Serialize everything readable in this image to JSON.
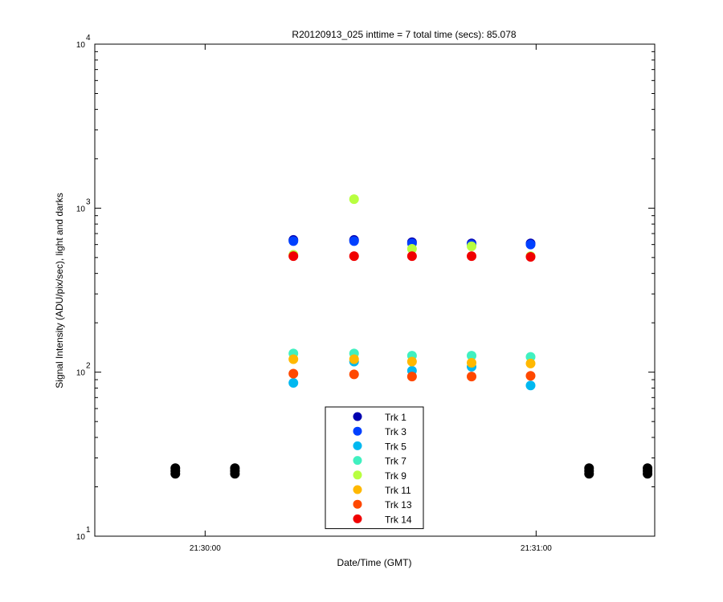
{
  "chart_data": {
    "type": "scatter",
    "title": "R20120913_025 inttime = 7 total time (secs): 85.078",
    "x_label": "Date/Time (GMT)",
    "y_label": "Signal Intensity (ADU/pix/sec), light and darks",
    "log_y": true,
    "xlim": [
      77380,
      77481.5
    ],
    "xticks": [
      {
        "value": 77400,
        "label": "21:30:00"
      },
      {
        "value": 77460,
        "label": "21:31:00"
      }
    ],
    "ylim": [
      10,
      10000
    ],
    "yticks": [
      {
        "value": 10,
        "label": "10",
        "exponent": "1"
      },
      {
        "value": 100,
        "label": "10",
        "exponent": "2"
      },
      {
        "value": 1000,
        "label": "10",
        "exponent": "3"
      },
      {
        "value": 10000,
        "label": "10",
        "exponent": "4"
      }
    ],
    "minor_yticks": [
      20,
      30,
      40,
      50,
      60,
      70,
      80,
      90,
      200,
      300,
      400,
      500,
      600,
      700,
      800,
      900,
      2000,
      3000,
      4000,
      5000,
      6000,
      7000,
      8000,
      9000
    ],
    "legend": "bottom-center",
    "series": [
      {
        "name": "Trk 1",
        "color": "#0000b0",
        "x": [
          77416,
          77427,
          77437.5,
          77448.3,
          77459
        ],
        "values": [
          640,
          640,
          620,
          610,
          610
        ]
      },
      {
        "name": "Trk 3",
        "color": "#0040ff",
        "x": [
          77416,
          77427,
          77437.5,
          77448.3,
          77459
        ],
        "values": [
          630,
          630,
          610,
          600,
          600
        ]
      },
      {
        "name": "Trk 5",
        "color": "#00b8f0",
        "x": [
          77416,
          77427,
          77437.5,
          77448.3,
          77459
        ],
        "values": [
          86,
          116,
          102,
          108,
          83
        ]
      },
      {
        "name": "Trk 7",
        "color": "#40f0c0",
        "x": [
          77416,
          77427,
          77437.5,
          77448.3,
          77459
        ],
        "values": [
          130,
          130,
          126,
          126,
          124
        ]
      },
      {
        "name": "Trk 9",
        "color": "#b8ff40",
        "x": [
          77416,
          77427,
          77437.5,
          77448.3,
          77459
        ],
        "values": [
          520,
          1135,
          565,
          585,
          510
        ]
      },
      {
        "name": "Trk 11",
        "color": "#ffb800",
        "x": [
          77416,
          77427,
          77437.5,
          77448.3,
          77459
        ],
        "values": [
          120,
          120,
          116,
          114,
          113
        ]
      },
      {
        "name": "Trk 13",
        "color": "#ff4800",
        "x": [
          77416,
          77427,
          77437.5,
          77448.3,
          77459
        ],
        "values": [
          98,
          97,
          94,
          94,
          95
        ]
      },
      {
        "name": "Trk 14",
        "color": "#f00000",
        "x": [
          77416,
          77427,
          77437.5,
          77448.3,
          77459
        ],
        "values": [
          510,
          510,
          510,
          510,
          505
        ]
      },
      {
        "color": "#000000",
        "x": [
          77394.6,
          77394.6,
          77394.6,
          77405.4,
          77405.4,
          77405.4,
          77469.6,
          77469.6,
          77469.6,
          77480.2,
          77480.2,
          77480.2
        ],
        "values": [
          24,
          25,
          26,
          24,
          25,
          26,
          24,
          25,
          26,
          24,
          25,
          26
        ]
      }
    ]
  }
}
